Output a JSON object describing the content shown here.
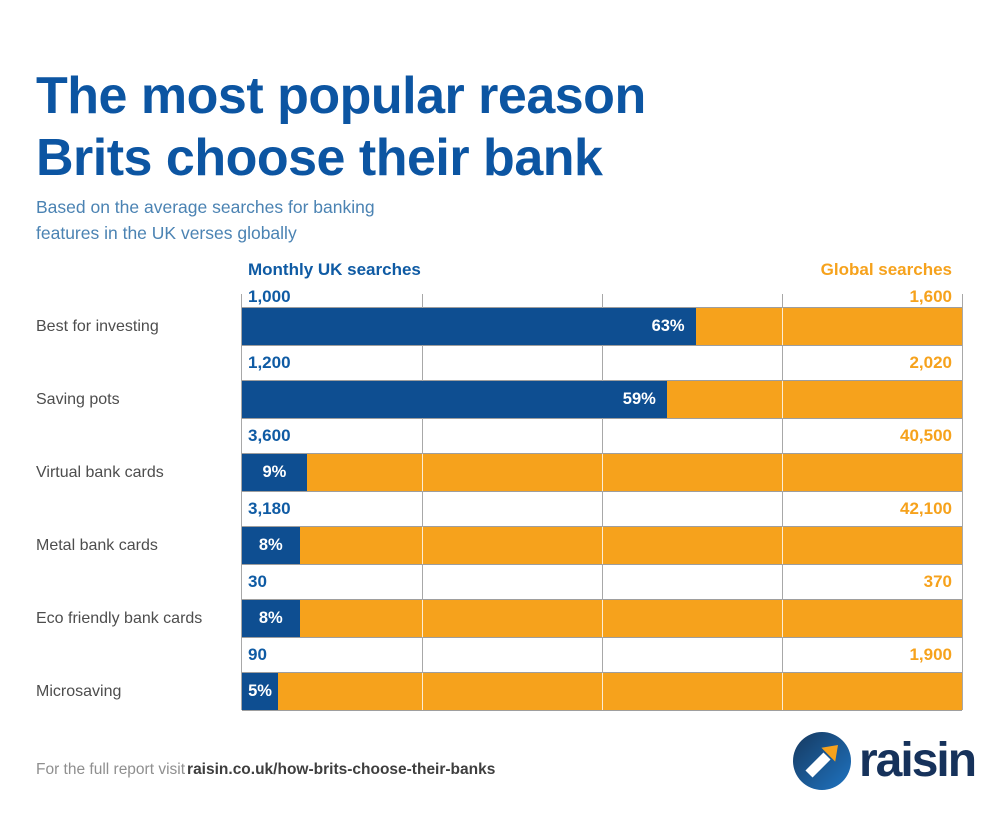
{
  "title": {
    "line1": "The most popular reason",
    "line2": "Brits choose their bank"
  },
  "subtitle": {
    "line1": "Based on the average searches for banking",
    "line2": "features in the UK verses globally"
  },
  "chart_data": {
    "type": "bar",
    "orientation": "horizontal",
    "stacked": true,
    "legend_position": "top",
    "series_labels": {
      "uk": "Monthly UK searches",
      "global": "Global searches"
    },
    "categories": [
      "Best for investing",
      "Saving pots",
      "Virtual bank cards",
      "Metal bank cards",
      "Eco friendly bank cards",
      "Microsaving"
    ],
    "rows": [
      {
        "category": "Best for investing",
        "uk_monthly_searches": "1,000",
        "global_searches": "1,600",
        "uk_pct": 63,
        "uk_pct_label": "63%"
      },
      {
        "category": "Saving pots",
        "uk_monthly_searches": "1,200",
        "global_searches": "2,020",
        "uk_pct": 59,
        "uk_pct_label": "59%"
      },
      {
        "category": "Virtual bank cards",
        "uk_monthly_searches": "3,600",
        "global_searches": "40,500",
        "uk_pct": 9,
        "uk_pct_label": "9%"
      },
      {
        "category": "Metal bank cards",
        "uk_monthly_searches": "3,180",
        "global_searches": "42,100",
        "uk_pct": 8,
        "uk_pct_label": "8%"
      },
      {
        "category": "Eco friendly bank cards",
        "uk_monthly_searches": "30",
        "global_searches": "370",
        "uk_pct": 8,
        "uk_pct_label": "8%"
      },
      {
        "category": "Microsaving",
        "uk_monthly_searches": "90",
        "global_searches": "1,900",
        "uk_pct": 5,
        "uk_pct_label": "5%"
      }
    ],
    "gridlines_pct": [
      0,
      25,
      50,
      75,
      100
    ],
    "colors": {
      "uk_bar": "#0E4E91",
      "global_bar": "#F6A21C",
      "uk_text": "#0F5BA4",
      "global_text": "#F6A21C",
      "title_blue": "#0C55A2",
      "subtitle_blue": "#4B83B3"
    }
  },
  "footer": {
    "prefix": "For the full report visit",
    "url": "raisin.co.uk/how-brits-choose-their-banks"
  },
  "logo": {
    "wordmark": "raisin"
  }
}
